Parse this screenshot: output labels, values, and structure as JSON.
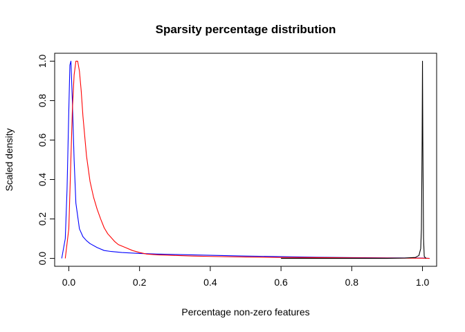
{
  "chart_data": {
    "type": "line",
    "title": "Sparsity percentage distribution",
    "xlabel": "Percentage non-zero features",
    "ylabel": "Scaled density",
    "xlim": [
      -0.04,
      1.04
    ],
    "ylim": [
      -0.04,
      1.04
    ],
    "x_ticks": [
      0.0,
      0.2,
      0.4,
      0.6,
      0.8,
      1.0
    ],
    "x_tick_labels": [
      "0.0",
      "0.2",
      "0.4",
      "0.6",
      "0.8",
      "1.0"
    ],
    "y_ticks": [
      0.0,
      0.2,
      0.4,
      0.6,
      0.8,
      1.0
    ],
    "y_tick_labels": [
      "0.0",
      "0.2",
      "0.4",
      "0.6",
      "0.8",
      "1.0"
    ],
    "grid": false,
    "legend": "none",
    "series": [
      {
        "color": "#0000ff",
        "x": [
          -0.02,
          -0.01,
          -0.005,
          0.0,
          0.003,
          0.006,
          0.01,
          0.015,
          0.02,
          0.03,
          0.04,
          0.05,
          0.06,
          0.08,
          0.1,
          0.12,
          0.15,
          0.2,
          0.25,
          0.3,
          0.4,
          0.5,
          0.6,
          0.7,
          0.8,
          0.9,
          1.0,
          1.02
        ],
        "y": [
          0.0,
          0.1,
          0.35,
          0.75,
          0.98,
          1.0,
          0.8,
          0.5,
          0.28,
          0.15,
          0.11,
          0.09,
          0.075,
          0.055,
          0.04,
          0.035,
          0.03,
          0.025,
          0.022,
          0.02,
          0.016,
          0.012,
          0.009,
          0.006,
          0.004,
          0.003,
          0.002,
          0.0
        ]
      },
      {
        "color": "#ff0000",
        "x": [
          -0.01,
          0.0,
          0.005,
          0.01,
          0.015,
          0.02,
          0.025,
          0.03,
          0.035,
          0.04,
          0.05,
          0.06,
          0.07,
          0.08,
          0.09,
          0.1,
          0.11,
          0.12,
          0.13,
          0.14,
          0.16,
          0.18,
          0.2,
          0.22,
          0.25,
          0.3,
          0.35,
          0.4,
          0.5,
          0.6,
          0.7,
          0.8,
          0.9,
          1.0,
          1.02
        ],
        "y": [
          0.0,
          0.15,
          0.45,
          0.75,
          0.93,
          1.0,
          1.0,
          0.95,
          0.85,
          0.72,
          0.52,
          0.39,
          0.31,
          0.25,
          0.2,
          0.155,
          0.125,
          0.105,
          0.085,
          0.07,
          0.055,
          0.04,
          0.03,
          0.022,
          0.018,
          0.015,
          0.012,
          0.01,
          0.007,
          0.005,
          0.004,
          0.003,
          0.002,
          0.001,
          0.0
        ]
      },
      {
        "color": "#000000",
        "x": [
          0.6,
          0.8,
          0.9,
          0.95,
          0.98,
          0.99,
          0.995,
          0.997,
          0.999,
          1.0,
          1.001,
          1.003,
          1.005,
          1.01
        ],
        "y": [
          0.0,
          0.0,
          0.0,
          0.002,
          0.005,
          0.015,
          0.05,
          0.15,
          0.6,
          1.0,
          0.6,
          0.1,
          0.01,
          0.0
        ]
      }
    ]
  }
}
